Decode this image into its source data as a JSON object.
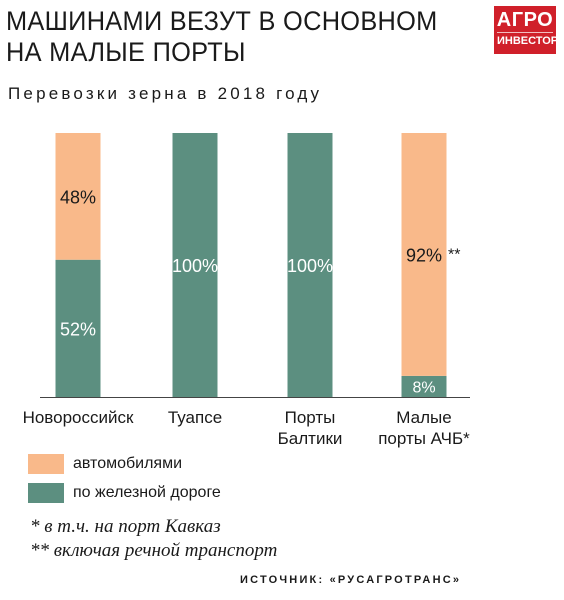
{
  "header": {
    "title": "МАШИНАМИ ВЕЗУТ В ОСНОВНОМ\nНА МАЛЫЕ ПОРТЫ",
    "subtitle": "Перевозки зерна в 2018 году"
  },
  "logo": {
    "line1": "АГРО",
    "line2": "ИНВЕСТОР",
    "color": "#d0202a"
  },
  "colors": {
    "auto": "#f9b98a",
    "rail": "#5c8f80"
  },
  "chart_data": {
    "type": "bar",
    "stacked": true,
    "normalized_percent": true,
    "categories": [
      "Новороссийск",
      "Туапсе",
      "Порты\nБалтики",
      "Малые\nпорты АЧБ*"
    ],
    "series": [
      {
        "name": "по железной дороге",
        "key": "rail",
        "values": [
          52,
          100,
          100,
          8
        ],
        "labels": [
          "52%",
          "100%",
          "100%",
          "8%"
        ]
      },
      {
        "name": "автомобилями",
        "key": "auto",
        "values": [
          48,
          0,
          0,
          92
        ],
        "labels": [
          "48%",
          "",
          "",
          "92%"
        ]
      }
    ],
    "label_suffixes": {
      "auto": [
        "",
        "",
        "",
        "**"
      ]
    },
    "ylim": [
      0,
      100
    ],
    "grid": false,
    "legend_position": "bottom-left"
  },
  "legend": {
    "items": [
      {
        "key": "auto",
        "label": "автомобилями"
      },
      {
        "key": "rail",
        "label": "по железной дороге"
      }
    ]
  },
  "notes": {
    "note1": "* в т.ч. на порт Кавказ",
    "note2": "** включая речной транспорт"
  },
  "source": "ИСТОЧНИК: «РУСАГРОТРАНС»"
}
